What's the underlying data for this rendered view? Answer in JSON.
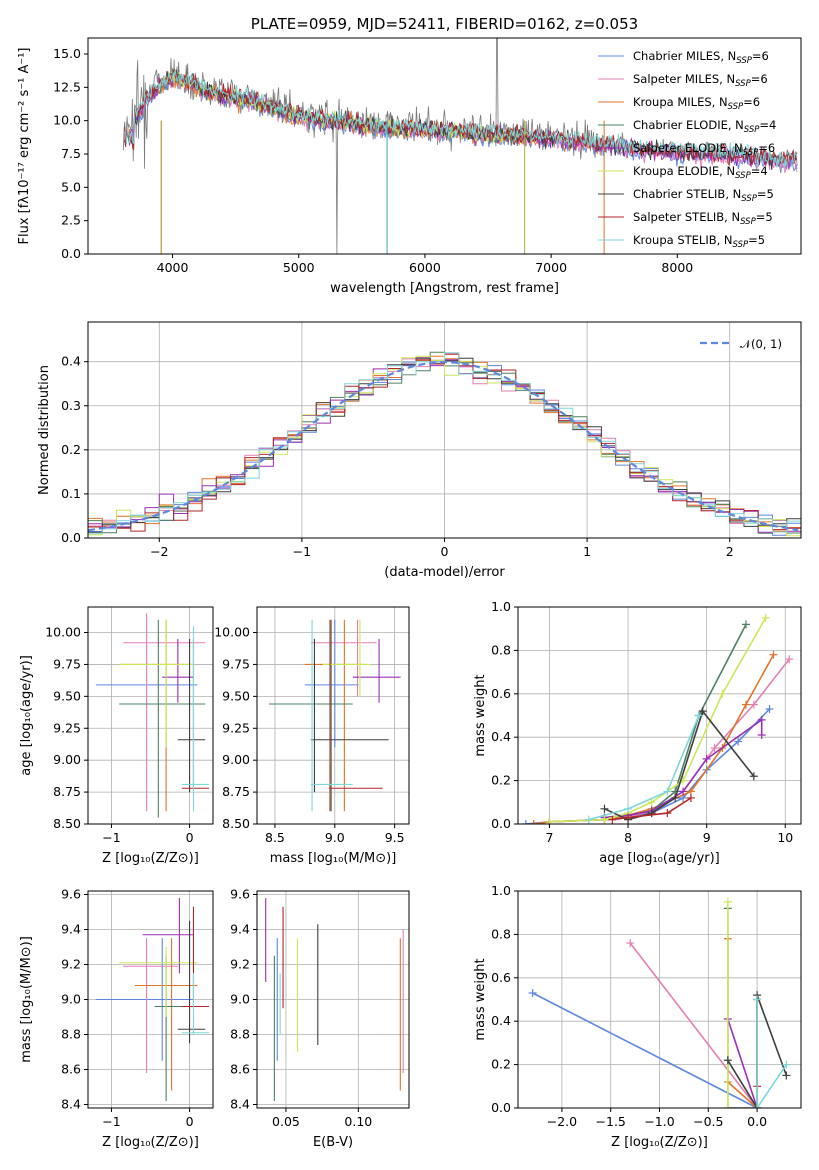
{
  "palette": [
    "#5d87e0",
    "#e47fb5",
    "#e0752c",
    "#4e8063",
    "#9a2fb5",
    "#cde75a",
    "#3f3f3f",
    "#b3262a",
    "#7fd7d7"
  ],
  "chart_data": [
    {
      "id": "spectrum",
      "type": "line",
      "title": "PLATE=0959, MJD=52411, FIBERID=0162, z=0.053",
      "xlabel": "wavelength [Angstrom, rest frame]",
      "ylabel": "Flux [fλ10⁻¹⁷ erg cm⁻² s⁻¹ A⁻¹]",
      "xlim": [
        3330,
        8980
      ],
      "ylim": [
        0,
        16.2
      ],
      "xticks": [
        4000,
        5000,
        6000,
        7000,
        8000
      ],
      "yticks": [
        0.0,
        2.5,
        5.0,
        7.5,
        10.0,
        12.5,
        15.0
      ],
      "xticklabels": [
        "4000",
        "5000",
        "6000",
        "7000",
        "8000"
      ],
      "yticklabels": [
        "0.0",
        "2.5",
        "5.0",
        "7.5",
        "10.0",
        "12.5",
        "15.0"
      ],
      "legend": [
        {
          "label": "Chabrier MILES, N",
          "sub": "SSP",
          "suffix": "=6"
        },
        {
          "label": "Salpeter MILES, N",
          "sub": "SSP",
          "suffix": "=6"
        },
        {
          "label": "Kroupa MILES, N",
          "sub": "SSP",
          "suffix": "=6"
        },
        {
          "label": "Chabrier ELODIE, N",
          "sub": "SSP",
          "suffix": "=4"
        },
        {
          "label": "Salpeter ELODIE, N",
          "sub": "SSP",
          "suffix": "=6"
        },
        {
          "label": "Kroupa ELODIE, N",
          "sub": "SSP",
          "suffix": "=4"
        },
        {
          "label": "Chabrier STELIB, N",
          "sub": "SSP",
          "suffix": "=5"
        },
        {
          "label": "Salpeter STELIB, N",
          "sub": "SSP",
          "suffix": "=5"
        },
        {
          "label": "Kroupa STELIB, N",
          "sub": "SSP",
          "suffix": "=5"
        }
      ],
      "data_points": {
        "x": [
          3600,
          3700,
          3800,
          3900,
          4000,
          4100,
          4200,
          4300,
          4400,
          4500,
          4600,
          4800,
          5000,
          5200,
          5400,
          5600,
          5800,
          6000,
          6200,
          6400,
          6600,
          6800,
          7000,
          7200,
          7400,
          7600,
          7800,
          8000,
          8200,
          8400,
          8600,
          8800
        ],
        "y": [
          9.5,
          10.5,
          12.0,
          13.0,
          13.5,
          13.2,
          12.8,
          12.4,
          12.2,
          12.0,
          11.8,
          11.2,
          10.6,
          10.3,
          10.1,
          9.8,
          9.7,
          9.6,
          9.5,
          9.3,
          9.2,
          9.1,
          8.9,
          8.7,
          8.5,
          8.2,
          8.0,
          7.9,
          7.8,
          7.7,
          7.5,
          7.3
        ]
      }
    },
    {
      "id": "residuals",
      "type": "histogram",
      "xlabel": "(data-model)/error",
      "ylabel": "Normed distribution",
      "xlim": [
        -2.5,
        2.5
      ],
      "ylim": [
        0,
        0.49
      ],
      "xticks": [
        -2,
        -1,
        0,
        1,
        2
      ],
      "yticks": [
        0.0,
        0.1,
        0.2,
        0.3,
        0.4
      ],
      "xticklabels": [
        "−2",
        "−1",
        "0",
        "1",
        "2"
      ],
      "yticklabels": [
        "0.0",
        "0.1",
        "0.2",
        "0.3",
        "0.4"
      ],
      "legend_label": "𝒩(0, 1)",
      "reference_curve": "normal(0,1) pdf"
    },
    {
      "id": "age-vs-Z",
      "type": "errorbar",
      "xlabel": "Z [log₁₀(Z/Z⊙)]",
      "ylabel": "age  [log₁₀(age/yr)]",
      "xlim": [
        -1.3,
        0.3
      ],
      "ylim": [
        8.5,
        10.2
      ],
      "xticks": [
        -1,
        0
      ],
      "yticks": [
        8.5,
        8.75,
        9.0,
        9.25,
        9.5,
        9.75,
        10.0
      ],
      "xticklabels": [
        "−1",
        "0"
      ],
      "yticklabels": [
        "8.50",
        "8.75",
        "9.00",
        "9.25",
        "9.50",
        "9.75",
        "10.00"
      ],
      "points": [
        {
          "x": -0.55,
          "xlo": -1.2,
          "xhi": 0.1,
          "y": 9.59,
          "ylo": 9.59,
          "yhi": 9.59
        },
        {
          "x": -0.55,
          "xlo": -0.85,
          "xhi": 0.2,
          "y": 9.92,
          "ylo": 8.6,
          "yhi": 10.15
        },
        {
          "x": -0.3,
          "xlo": -0.9,
          "xhi": 0.05,
          "y": 9.75,
          "ylo": 8.6,
          "yhi": 10.1
        },
        {
          "x": -0.4,
          "xlo": -0.9,
          "xhi": 0.2,
          "y": 9.44,
          "ylo": 8.55,
          "yhi": 10.1
        },
        {
          "x": -0.15,
          "xlo": -0.35,
          "xhi": 0.05,
          "y": 9.65,
          "ylo": 9.45,
          "yhi": 9.95
        },
        {
          "x": -0.3,
          "xlo": -0.9,
          "xhi": 0.05,
          "y": 9.75,
          "ylo": 9.1,
          "yhi": 10.1
        },
        {
          "x": 0.0,
          "xlo": -0.15,
          "xhi": 0.2,
          "y": 9.16,
          "ylo": 8.75,
          "yhi": 9.95
        },
        {
          "x": 0.05,
          "xlo": -0.1,
          "xhi": 0.25,
          "y": 8.78,
          "ylo": 8.78,
          "yhi": 9.95
        },
        {
          "x": 0.05,
          "xlo": -0.1,
          "xhi": 0.25,
          "y": 8.81,
          "ylo": 8.6,
          "yhi": 10.05
        }
      ]
    },
    {
      "id": "age-vs-mass",
      "type": "errorbar",
      "xlabel": "mass [log₁₀(M/M⊙)]",
      "ylabel": "",
      "xlim": [
        8.35,
        9.62
      ],
      "ylim": [
        8.5,
        10.2
      ],
      "xticks": [
        8.5,
        9.0,
        9.5
      ],
      "yticks": [
        8.5,
        8.75,
        9.0,
        9.25,
        9.5,
        9.75,
        10.0
      ],
      "xticklabels": [
        "8.5",
        "9.0",
        "9.5"
      ],
      "yticklabels": [
        "8.50",
        "8.75",
        "9.00",
        "9.25",
        "9.50",
        "9.75",
        "10.00"
      ],
      "points": [
        {
          "x": 9.0,
          "xlo": 8.75,
          "xhi": 9.2,
          "y": 9.59,
          "ylo": 9.1,
          "yhi": 10.1
        },
        {
          "x": 9.19,
          "xlo": 8.8,
          "xhi": 9.35,
          "y": 9.92,
          "ylo": 9.5,
          "yhi": 10.1
        },
        {
          "x": 9.08,
          "xlo": 8.75,
          "xhi": 9.25,
          "y": 9.75,
          "ylo": 8.6,
          "yhi": 10.1
        },
        {
          "x": 8.97,
          "xlo": 8.45,
          "xhi": 9.15,
          "y": 9.44,
          "ylo": 8.6,
          "yhi": 10.1
        },
        {
          "x": 9.37,
          "xlo": 9.15,
          "xhi": 9.55,
          "y": 9.65,
          "ylo": 9.45,
          "yhi": 9.95
        },
        {
          "x": 9.21,
          "xlo": 8.9,
          "xhi": 9.3,
          "y": 9.75,
          "ylo": 9.5,
          "yhi": 10.1
        },
        {
          "x": 8.83,
          "xlo": 8.8,
          "xhi": 9.45,
          "y": 9.16,
          "ylo": 8.75,
          "yhi": 9.95
        },
        {
          "x": 8.96,
          "xlo": 8.95,
          "xhi": 9.4,
          "y": 8.78,
          "ylo": 8.6,
          "yhi": 10.1
        },
        {
          "x": 8.81,
          "xlo": 8.8,
          "xhi": 9.15,
          "y": 8.81,
          "ylo": 8.6,
          "yhi": 10.1
        }
      ]
    },
    {
      "id": "weight-vs-age",
      "type": "line",
      "xlabel": "age  [log₁₀(age/yr)]",
      "ylabel": "mass weight",
      "xlim": [
        6.6,
        10.2
      ],
      "ylim": [
        0,
        1.0
      ],
      "xticks": [
        7,
        8,
        9,
        10
      ],
      "yticks": [
        0.0,
        0.2,
        0.4,
        0.6,
        0.8,
        1.0
      ],
      "xticklabels": [
        "7",
        "8",
        "9",
        "10"
      ],
      "yticklabels": [
        "0.0",
        "0.2",
        "0.4",
        "0.6",
        "0.8",
        "1.0"
      ],
      "series": [
        {
          "x": [
            6.7,
            7.0,
            7.7,
            8.0,
            8.3,
            8.7,
            9.0,
            9.4,
            9.8
          ],
          "y": [
            0.0,
            0.01,
            0.02,
            0.03,
            0.05,
            0.12,
            0.25,
            0.38,
            0.53
          ]
        },
        {
          "x": [
            6.8,
            7.0,
            7.7,
            8.0,
            8.3,
            8.7,
            9.1,
            9.6,
            10.05
          ],
          "y": [
            0.0,
            0.01,
            0.02,
            0.03,
            0.06,
            0.15,
            0.35,
            0.55,
            0.76
          ]
        },
        {
          "x": [
            6.8,
            7.0,
            7.7,
            8.0,
            8.3,
            8.8,
            9.2,
            9.5,
            9.85
          ],
          "y": [
            0.0,
            0.01,
            0.02,
            0.04,
            0.07,
            0.15,
            0.35,
            0.55,
            0.78
          ]
        },
        {
          "x": [
            7.7,
            8.0,
            8.3,
            8.6,
            8.9,
            9.5
          ],
          "y": [
            0.03,
            0.04,
            0.06,
            0.15,
            0.5,
            0.92
          ]
        },
        {
          "x": [
            7.7,
            8.0,
            8.3,
            8.7,
            9.0,
            9.7,
            9.7
          ],
          "y": [
            0.03,
            0.04,
            0.06,
            0.15,
            0.3,
            0.48,
            0.41
          ]
        },
        {
          "x": [
            7.0,
            7.7,
            8.0,
            8.3,
            8.7,
            9.2,
            9.75
          ],
          "y": [
            0.01,
            0.02,
            0.05,
            0.1,
            0.2,
            0.6,
            0.95
          ]
        },
        {
          "x": [
            7.7,
            8.0,
            8.3,
            8.6,
            8.95,
            9.6
          ],
          "y": [
            0.07,
            0.02,
            0.05,
            0.12,
            0.52,
            0.22
          ]
        },
        {
          "x": [
            7.8,
            8.0,
            8.5,
            8.8
          ],
          "y": [
            0.02,
            0.03,
            0.05,
            0.12
          ]
        },
        {
          "x": [
            7.5,
            8.0,
            8.5,
            8.9
          ],
          "y": [
            0.02,
            0.07,
            0.15,
            0.5
          ]
        }
      ]
    },
    {
      "id": "mass-vs-Z",
      "type": "errorbar",
      "xlabel": "Z [log₁₀(Z/Z⊙)]",
      "ylabel": "mass [log₁₀(M/M⊙)]",
      "xlim": [
        -1.3,
        0.3
      ],
      "ylim": [
        8.38,
        9.62
      ],
      "xticks": [
        -1,
        0
      ],
      "yticks": [
        8.4,
        8.6,
        8.8,
        9.0,
        9.2,
        9.4,
        9.6
      ],
      "xticklabels": [
        "−1",
        "0"
      ],
      "yticklabels": [
        "8.4",
        "8.6",
        "8.8",
        "9.0",
        "9.2",
        "9.4",
        "9.6"
      ],
      "points": [
        {
          "x": -0.35,
          "xlo": -1.2,
          "xhi": 0.05,
          "y": 9.0,
          "ylo": 8.65,
          "yhi": 9.35
        },
        {
          "x": -0.55,
          "xlo": -0.85,
          "xhi": -0.15,
          "y": 9.19,
          "ylo": 8.58,
          "yhi": 9.35
        },
        {
          "x": -0.23,
          "xlo": -0.7,
          "xhi": 0.1,
          "y": 9.08,
          "ylo": 8.48,
          "yhi": 9.35
        },
        {
          "x": -0.3,
          "xlo": -0.45,
          "xhi": 0.15,
          "y": 8.96,
          "ylo": 8.42,
          "yhi": 9.25
        },
        {
          "x": -0.13,
          "xlo": -0.6,
          "xhi": 0.05,
          "y": 9.37,
          "ylo": 9.15,
          "yhi": 9.58
        },
        {
          "x": -0.3,
          "xlo": -0.9,
          "xhi": 0.1,
          "y": 9.21,
          "ylo": 8.9,
          "yhi": 9.3
        },
        {
          "x": 0.0,
          "xlo": -0.15,
          "xhi": 0.2,
          "y": 8.83,
          "ylo": 8.75,
          "yhi": 9.45
        },
        {
          "x": 0.05,
          "xlo": -0.1,
          "xhi": 0.25,
          "y": 8.96,
          "ylo": 8.95,
          "yhi": 9.53
        },
        {
          "x": 0.05,
          "xlo": -0.1,
          "xhi": 0.25,
          "y": 8.81,
          "ylo": 8.8,
          "yhi": 9.15
        }
      ]
    },
    {
      "id": "mass-vs-ebv",
      "type": "errorbar",
      "xlabel": "E(B-V)",
      "ylabel": "",
      "xlim": [
        0.03,
        0.135
      ],
      "ylim": [
        8.38,
        9.62
      ],
      "xticks": [
        0.05,
        0.1
      ],
      "yticks": [
        8.4,
        8.6,
        8.8,
        9.0,
        9.2,
        9.4,
        9.6
      ],
      "xticklabels": [
        "0.05",
        "0.10"
      ],
      "yticklabels": [
        "8.4",
        "8.6",
        "8.8",
        "9.0",
        "9.2",
        "9.4",
        "9.6"
      ],
      "points": [
        {
          "x": 0.044,
          "ylo": 8.65,
          "yhi": 9.35
        },
        {
          "x": 0.131,
          "ylo": 8.58,
          "yhi": 9.4
        },
        {
          "x": 0.129,
          "ylo": 8.48,
          "yhi": 9.35
        },
        {
          "x": 0.042,
          "ylo": 8.42,
          "yhi": 9.25
        },
        {
          "x": 0.036,
          "ylo": 9.1,
          "yhi": 9.58
        },
        {
          "x": 0.058,
          "ylo": 8.7,
          "yhi": 9.35
        },
        {
          "x": 0.072,
          "ylo": 8.74,
          "yhi": 9.43
        },
        {
          "x": 0.048,
          "ylo": 8.95,
          "yhi": 9.53
        },
        {
          "x": 0.046,
          "ylo": 8.8,
          "yhi": 9.15
        }
      ]
    },
    {
      "id": "weight-vs-Z",
      "type": "line",
      "xlabel": "Z [log₁₀(Z/Z⊙)]",
      "ylabel": "mass weight",
      "xlim": [
        -2.45,
        0.45
      ],
      "ylim": [
        0,
        1.0
      ],
      "xticks": [
        -2.0,
        -1.5,
        -1.0,
        -0.5,
        0.0
      ],
      "yticks": [
        0.0,
        0.2,
        0.4,
        0.6,
        0.8,
        1.0
      ],
      "xticklabels": [
        "−2.0",
        "−1.5",
        "−1.0",
        "−0.5",
        "0.0"
      ],
      "yticklabels": [
        "0.0",
        "0.2",
        "0.4",
        "0.6",
        "0.8",
        "1.0"
      ],
      "series": [
        {
          "x": [
            -2.3,
            0.0
          ],
          "y": [
            0.53,
            0.0
          ]
        },
        {
          "x": [
            -1.3,
            0.0
          ],
          "y": [
            0.76,
            0.0
          ]
        },
        {
          "x": [
            -0.3,
            -0.3,
            0.0
          ],
          "y": [
            0.78,
            0.12,
            0.0
          ]
        },
        {
          "x": [
            -0.3,
            -0.3,
            0.0
          ],
          "y": [
            0.92,
            0.0,
            0.0
          ]
        },
        {
          "x": [
            -0.3,
            0.0
          ],
          "y": [
            0.41,
            0.0
          ]
        },
        {
          "x": [
            -0.3,
            -0.3
          ],
          "y": [
            0.95,
            0.0
          ]
        },
        {
          "x": [
            -0.3,
            0.0,
            0.0,
            0.3
          ],
          "y": [
            0.22,
            0.0,
            0.52,
            0.15
          ]
        },
        {
          "x": [
            0.0,
            0.0
          ],
          "y": [
            0.5,
            0.1
          ]
        },
        {
          "x": [
            0.0,
            0.0,
            0.3
          ],
          "y": [
            0.5,
            0.0,
            0.2
          ]
        }
      ]
    }
  ]
}
